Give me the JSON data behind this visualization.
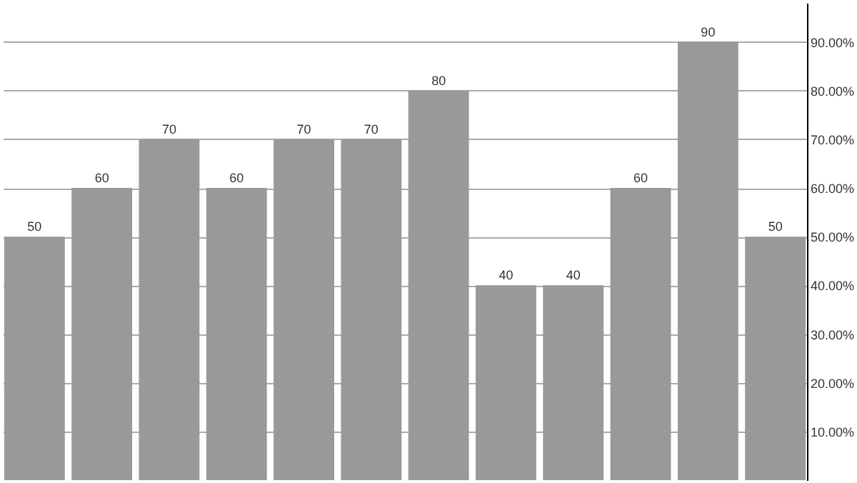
{
  "chart_data": {
    "type": "bar",
    "categories": [
      null,
      null,
      null,
      null,
      null,
      null,
      null,
      null,
      null,
      null,
      null,
      null
    ],
    "values": [
      50,
      60,
      70,
      60,
      70,
      70,
      80,
      40,
      40,
      60,
      90,
      50
    ],
    "color": "#999999",
    "ylim": [
      0,
      98
    ],
    "yticks": [
      {
        "value": 10,
        "label": "10.00%"
      },
      {
        "value": 20,
        "label": "20.00%"
      },
      {
        "value": 30,
        "label": "30.00%"
      },
      {
        "value": 40,
        "label": "40.00%"
      },
      {
        "value": 50,
        "label": "50.00%"
      },
      {
        "value": 60,
        "label": "60.00%"
      },
      {
        "value": 70,
        "label": "70.00%"
      },
      {
        "value": 80,
        "label": "80.00%"
      },
      {
        "value": 90,
        "label": "90.00%"
      }
    ],
    "grid": "y",
    "data_labels": true,
    "tick_labels": "y"
  }
}
